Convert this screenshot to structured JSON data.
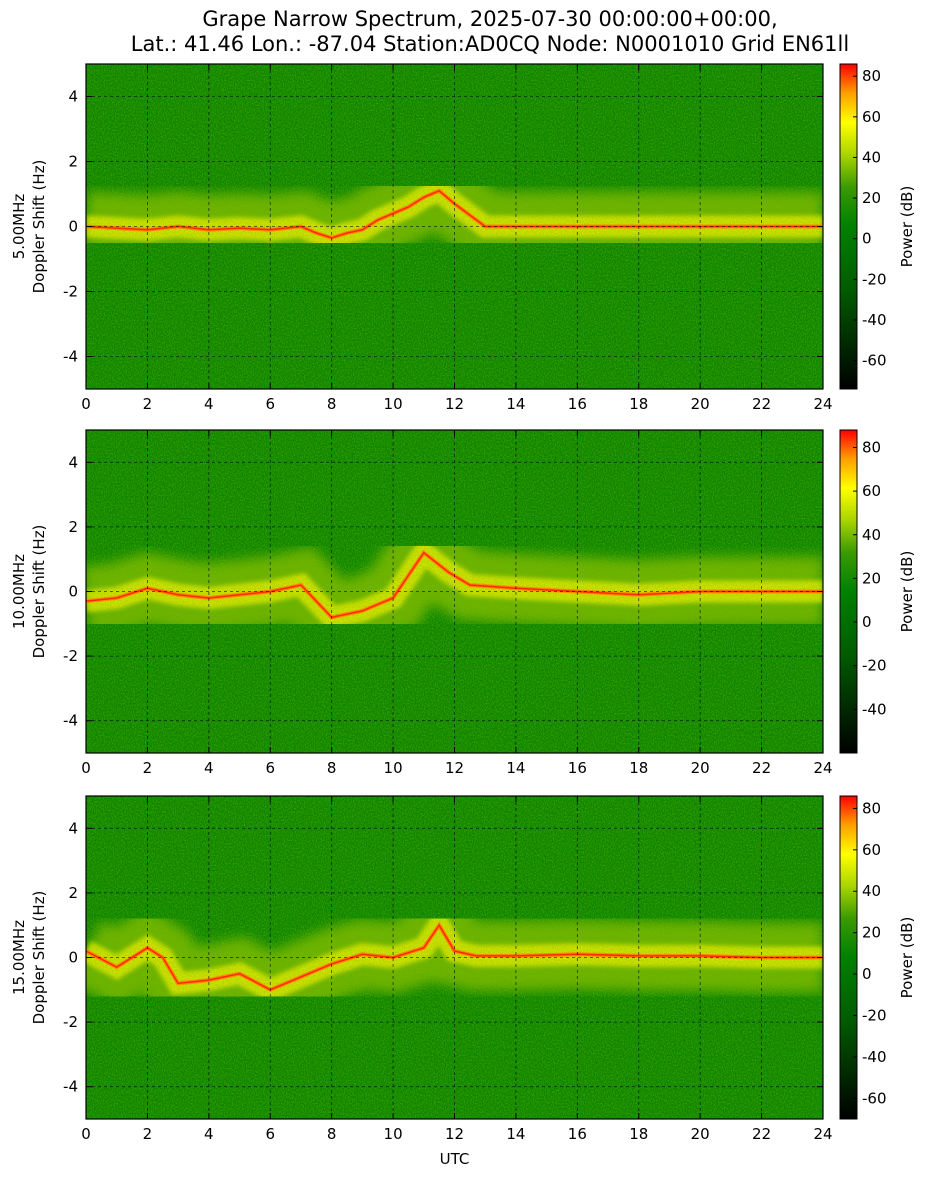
{
  "title": {
    "line1": "Grape Narrow Spectrum, 2025-07-30 00:00:00+00:00,",
    "line2": "Lat.: 41.46 Lon.: -87.04 Station:AD0CQ Node: N0001010 Grid EN61ll"
  },
  "chart_data": [
    {
      "type": "heatmap",
      "panel": "5MHz",
      "ylabel_line1": "5.00MHz",
      "ylabel_line2": "Doppler Shift (Hz)",
      "xlabel": "",
      "xlim": [
        0,
        24
      ],
      "ylim": [
        -5,
        5
      ],
      "xticks": [
        0,
        2,
        4,
        6,
        8,
        10,
        12,
        14,
        16,
        18,
        20,
        22,
        24
      ],
      "yticks": [
        -4,
        -2,
        0,
        2,
        4
      ],
      "grid": true,
      "colorbar": {
        "label": "Power (dB)",
        "range": [
          -74,
          86
        ],
        "ticks": [
          -60,
          -40,
          -20,
          0,
          20,
          40,
          60,
          80
        ]
      },
      "ridge": [
        [
          0,
          0.0
        ],
        [
          1,
          -0.05
        ],
        [
          2,
          -0.1
        ],
        [
          3,
          0.0
        ],
        [
          4,
          -0.1
        ],
        [
          5,
          -0.05
        ],
        [
          6,
          -0.1
        ],
        [
          7,
          0.0
        ],
        [
          7.5,
          -0.2
        ],
        [
          8,
          -0.35
        ],
        [
          8.5,
          -0.2
        ],
        [
          9,
          -0.1
        ],
        [
          9.5,
          0.2
        ],
        [
          10,
          0.4
        ],
        [
          10.5,
          0.6
        ],
        [
          11,
          0.9
        ],
        [
          11.5,
          1.1
        ],
        [
          12,
          0.7
        ],
        [
          13,
          0.0
        ],
        [
          24,
          0.0
        ]
      ]
    },
    {
      "type": "heatmap",
      "panel": "10MHz",
      "ylabel_line1": "10.00MHz",
      "ylabel_line2": "Doppler Shift (Hz)",
      "xlabel": "",
      "xlim": [
        0,
        24
      ],
      "ylim": [
        -5,
        5
      ],
      "xticks": [
        0,
        2,
        4,
        6,
        8,
        10,
        12,
        14,
        16,
        18,
        20,
        22,
        24
      ],
      "yticks": [
        -4,
        -2,
        0,
        2,
        4
      ],
      "grid": true,
      "colorbar": {
        "label": "Power (dB)",
        "range": [
          -60,
          88
        ],
        "ticks": [
          -40,
          -20,
          0,
          20,
          40,
          60,
          80
        ]
      },
      "ridge": [
        [
          0,
          -0.3
        ],
        [
          1,
          -0.2
        ],
        [
          2,
          0.1
        ],
        [
          3,
          -0.1
        ],
        [
          4,
          -0.2
        ],
        [
          5,
          -0.1
        ],
        [
          6,
          0.0
        ],
        [
          7,
          0.2
        ],
        [
          7.5,
          -0.3
        ],
        [
          8,
          -0.8
        ],
        [
          9,
          -0.6
        ],
        [
          10,
          -0.2
        ],
        [
          11,
          1.2
        ],
        [
          11.8,
          0.6
        ],
        [
          12.5,
          0.2
        ],
        [
          14,
          0.1
        ],
        [
          16,
          0.0
        ],
        [
          18,
          -0.1
        ],
        [
          20,
          0.0
        ],
        [
          22,
          0.0
        ],
        [
          24,
          0.0
        ]
      ]
    },
    {
      "type": "heatmap",
      "panel": "15MHz",
      "ylabel_line1": "15.00MHz",
      "ylabel_line2": "Doppler Shift (Hz)",
      "xlabel": "UTC",
      "xlim": [
        0,
        24
      ],
      "ylim": [
        -5,
        5
      ],
      "xticks": [
        0,
        2,
        4,
        6,
        8,
        10,
        12,
        14,
        16,
        18,
        20,
        22,
        24
      ],
      "yticks": [
        -4,
        -2,
        0,
        2,
        4
      ],
      "grid": true,
      "colorbar": {
        "label": "Power (dB)",
        "range": [
          -70,
          86
        ],
        "ticks": [
          -60,
          -40,
          -20,
          0,
          20,
          40,
          60,
          80
        ]
      },
      "ridge": [
        [
          0,
          0.2
        ],
        [
          1,
          -0.3
        ],
        [
          2,
          0.3
        ],
        [
          2.5,
          0.0
        ],
        [
          3,
          -0.8
        ],
        [
          4,
          -0.7
        ],
        [
          5,
          -0.5
        ],
        [
          6,
          -1.0
        ],
        [
          7,
          -0.6
        ],
        [
          8,
          -0.2
        ],
        [
          9,
          0.1
        ],
        [
          10,
          0.0
        ],
        [
          11,
          0.3
        ],
        [
          11.5,
          1.0
        ],
        [
          12,
          0.2
        ],
        [
          12.7,
          0.05
        ],
        [
          14,
          0.05
        ],
        [
          16,
          0.1
        ],
        [
          18,
          0.05
        ],
        [
          20,
          0.05
        ],
        [
          22,
          0.0
        ],
        [
          24,
          0.0
        ]
      ]
    }
  ]
}
